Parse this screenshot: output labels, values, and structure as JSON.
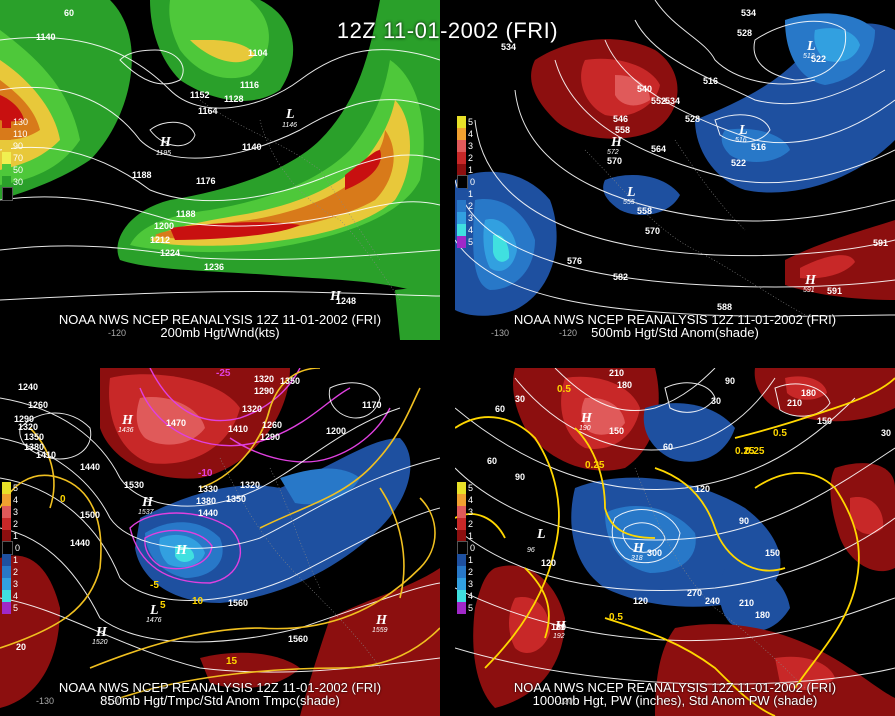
{
  "title": "12Z 11-01-2002 (FRI)",
  "source_line": "NOAA NWS NCEP REANALYSIS 12Z 11-01-2002 (FRI)",
  "panels": [
    {
      "id": "p1",
      "caption": "200mb Hgt/Wnd(kts)",
      "legend": [
        "130",
        "110",
        "90",
        "70",
        "50",
        "30"
      ],
      "legend_colors": [
        "#c81010",
        "#d87a1a",
        "#e8c83a",
        "#f0f050",
        "#4ec83a",
        "#2aa02a",
        "#000000"
      ],
      "labels": [
        "1140",
        "1104",
        "1116",
        "1152",
        "1128",
        "1164",
        "1140",
        "1188",
        "1176",
        "1188",
        "1200",
        "1212",
        "1224",
        "1236",
        "1248",
        "60"
      ],
      "lows_highs": [
        {
          "sym": "H",
          "val": "1195"
        },
        {
          "sym": "L",
          "val": "1146"
        },
        {
          "sym": "H",
          "val": ""
        }
      ],
      "lon_labels": [
        "-120"
      ]
    },
    {
      "id": "p2",
      "caption": "500mb Hgt/Std Anom(shade)",
      "legend": [
        "5",
        "4",
        "3",
        "2",
        "1",
        "0",
        "1",
        "2",
        "3",
        "4",
        "5"
      ],
      "legend_colors": [
        "#e8e028",
        "#f0a030",
        "#e05a5a",
        "#c82828",
        "#8c0f0f",
        "#000000",
        "#1e50a0",
        "#2878c8",
        "#32a0e0",
        "#40e0e0",
        "#a028c8"
      ],
      "labels": [
        "534",
        "528",
        "534",
        "522",
        "516",
        "540",
        "552",
        "534",
        "528",
        "546",
        "558",
        "516",
        "570",
        "564",
        "522",
        "558",
        "570",
        "576",
        "582",
        "588",
        "591",
        "591"
      ],
      "lows_highs": [
        {
          "sym": "L",
          "val": "512"
        },
        {
          "sym": "L",
          "val": "516"
        },
        {
          "sym": "H",
          "val": "572"
        },
        {
          "sym": "L",
          "val": "555"
        },
        {
          "sym": "H",
          "val": "591"
        }
      ],
      "lon_labels": [
        "-130",
        "-120"
      ]
    },
    {
      "id": "p3",
      "caption": "850mb Hgt/Tmpc/Std Anom Tmpc(shade)",
      "legend": [
        "5",
        "4",
        "3",
        "2",
        "1",
        "0",
        "1",
        "2",
        "3",
        "4",
        "5"
      ],
      "legend_colors": [
        "#e8e028",
        "#f0a030",
        "#e05a5a",
        "#c82828",
        "#8c0f0f",
        "#000000",
        "#1e50a0",
        "#2878c8",
        "#32a0e0",
        "#40e0e0",
        "#a028c8"
      ],
      "labels": [
        "1240",
        "1260",
        "1290",
        "1320",
        "1350",
        "1380",
        "1410",
        "1470",
        "1320",
        "1350",
        "1290",
        "1320",
        "1260",
        "1410",
        "1290",
        "1440",
        "1530",
        "1500",
        "1440",
        "1320",
        "1330",
        "1380",
        "1350",
        "1440",
        "1560",
        "1560",
        "1170",
        "1200",
        "-25",
        "-10",
        "-5",
        "0",
        "5",
        "10",
        "15",
        "20"
      ],
      "lows_highs": [
        {
          "sym": "H",
          "val": "1436"
        },
        {
          "sym": "H",
          "val": "1537"
        },
        {
          "sym": "H",
          "val": ""
        },
        {
          "sym": "H",
          "val": "1520"
        },
        {
          "sym": "L",
          "val": "1476"
        },
        {
          "sym": "H",
          "val": "1559"
        }
      ],
      "lon_labels": [
        "-130",
        "-120"
      ]
    },
    {
      "id": "p4",
      "caption": "1000mb Hgt, PW (inches), Std Anom PW (shade)",
      "legend": [
        "5",
        "4",
        "3",
        "2",
        "1",
        "0",
        "1",
        "2",
        "3",
        "4",
        "5"
      ],
      "legend_colors": [
        "#e8e028",
        "#f0a030",
        "#e05a5a",
        "#c82828",
        "#8c0f0f",
        "#000000",
        "#1e50a0",
        "#2878c8",
        "#32a0e0",
        "#40e0e0",
        "#a028c8"
      ],
      "labels": [
        "210",
        "180",
        "90",
        "30",
        "60",
        "30",
        "150",
        "60",
        "0.5",
        "0.25",
        "120",
        "90",
        "60",
        "90",
        "0.25",
        "120",
        "300",
        "150",
        "270",
        "240",
        "210",
        "180",
        "180",
        "0.5",
        "120",
        "210",
        "180",
        "150",
        "30",
        "0.25",
        "0.5"
      ],
      "lows_highs": [
        {
          "sym": "H",
          "val": "190"
        },
        {
          "sym": "L",
          "val": "96"
        },
        {
          "sym": "H",
          "val": "318"
        },
        {
          "sym": "H",
          "val": "192"
        }
      ],
      "lon_labels": [
        "-120"
      ]
    }
  ]
}
